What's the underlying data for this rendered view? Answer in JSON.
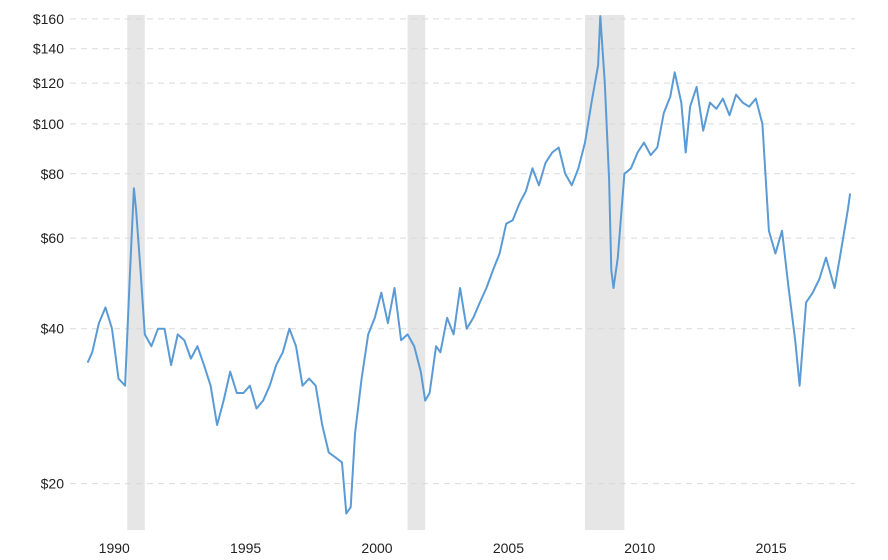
{
  "chart_data": {
    "type": "line",
    "y_scale": "log",
    "ylim": [
      17,
      165
    ],
    "xlim": [
      "1989-01-01",
      "2018-01-01"
    ],
    "grid": "horizontal-dashed",
    "y_ticks": [
      {
        "value": 160,
        "label": "$160"
      },
      {
        "value": 140,
        "label": "$140"
      },
      {
        "value": 120,
        "label": "$120"
      },
      {
        "value": 100,
        "label": "$100"
      },
      {
        "value": 80,
        "label": "$80"
      },
      {
        "value": 60,
        "label": "$60"
      },
      {
        "value": 40,
        "label": "$40"
      },
      {
        "value": 20,
        "label": "$20"
      }
    ],
    "x_ticks": [
      {
        "value": "1990-01-01",
        "label": "1990"
      },
      {
        "value": "1995-01-01",
        "label": "1995"
      },
      {
        "value": "2000-01-01",
        "label": "2000"
      },
      {
        "value": "2005-01-01",
        "label": "2005"
      },
      {
        "value": "2010-01-01",
        "label": "2010"
      },
      {
        "value": "2015-01-01",
        "label": "2015"
      }
    ],
    "recessions": [
      {
        "start": "1990-07-01",
        "end": "1991-03-01"
      },
      {
        "start": "2001-03-01",
        "end": "2001-11-01"
      },
      {
        "start": "2007-12-01",
        "end": "2009-06-01"
      }
    ],
    "series": [
      {
        "color": "#5b9bd5",
        "points": [
          [
            "1989-01-01",
            34.5
          ],
          [
            "1989-03-01",
            36
          ],
          [
            "1989-06-01",
            41
          ],
          [
            "1989-09-01",
            44
          ],
          [
            "1989-12-01",
            40
          ],
          [
            "1990-03-01",
            32
          ],
          [
            "1990-06-01",
            31
          ],
          [
            "1990-08-01",
            49
          ],
          [
            "1990-10-01",
            75
          ],
          [
            "1990-11-01",
            68
          ],
          [
            "1991-01-01",
            52
          ],
          [
            "1991-03-01",
            39
          ],
          [
            "1991-06-01",
            37
          ],
          [
            "1991-09-01",
            40
          ],
          [
            "1991-12-01",
            40
          ],
          [
            "1992-03-01",
            34
          ],
          [
            "1992-06-01",
            39
          ],
          [
            "1992-09-01",
            38
          ],
          [
            "1992-12-01",
            35
          ],
          [
            "1993-03-01",
            37
          ],
          [
            "1993-06-01",
            34
          ],
          [
            "1993-09-01",
            31
          ],
          [
            "1993-12-01",
            26
          ],
          [
            "1994-03-01",
            29
          ],
          [
            "1994-06-01",
            33
          ],
          [
            "1994-09-01",
            30
          ],
          [
            "1994-12-01",
            30
          ],
          [
            "1995-03-01",
            31
          ],
          [
            "1995-06-01",
            28
          ],
          [
            "1995-09-01",
            29
          ],
          [
            "1995-12-01",
            31
          ],
          [
            "1996-03-01",
            34
          ],
          [
            "1996-06-01",
            36
          ],
          [
            "1996-09-01",
            40
          ],
          [
            "1996-12-01",
            37
          ],
          [
            "1997-03-01",
            31
          ],
          [
            "1997-06-01",
            32
          ],
          [
            "1997-09-01",
            31
          ],
          [
            "1997-12-01",
            26
          ],
          [
            "1998-03-01",
            23
          ],
          [
            "1998-06-01",
            22.5
          ],
          [
            "1998-09-01",
            22
          ],
          [
            "1998-11-01",
            17.5
          ],
          [
            "1999-01-01",
            18
          ],
          [
            "1999-03-01",
            25
          ],
          [
            "1999-06-01",
            32
          ],
          [
            "1999-09-01",
            39
          ],
          [
            "1999-12-01",
            42
          ],
          [
            "2000-03-01",
            47
          ],
          [
            "2000-06-01",
            41
          ],
          [
            "2000-09-01",
            48
          ],
          [
            "2000-12-01",
            38
          ],
          [
            "2001-03-01",
            39
          ],
          [
            "2001-06-01",
            37
          ],
          [
            "2001-09-01",
            33
          ],
          [
            "2001-11-01",
            29
          ],
          [
            "2002-01-01",
            30
          ],
          [
            "2002-04-01",
            37
          ],
          [
            "2002-06-01",
            36
          ],
          [
            "2002-09-01",
            42
          ],
          [
            "2002-12-01",
            39
          ],
          [
            "2003-03-01",
            48
          ],
          [
            "2003-06-01",
            40
          ],
          [
            "2003-09-01",
            42
          ],
          [
            "2003-12-01",
            45
          ],
          [
            "2004-03-01",
            48
          ],
          [
            "2004-06-01",
            52
          ],
          [
            "2004-09-01",
            56
          ],
          [
            "2004-12-01",
            64
          ],
          [
            "2005-03-01",
            65
          ],
          [
            "2005-06-01",
            70
          ],
          [
            "2005-09-01",
            74
          ],
          [
            "2005-12-01",
            82
          ],
          [
            "2006-03-01",
            76
          ],
          [
            "2006-06-01",
            84
          ],
          [
            "2006-09-01",
            88
          ],
          [
            "2006-12-01",
            90
          ],
          [
            "2007-03-01",
            80
          ],
          [
            "2007-06-01",
            76
          ],
          [
            "2007-09-01",
            82
          ],
          [
            "2007-12-01",
            92
          ],
          [
            "2008-03-01",
            110
          ],
          [
            "2008-06-01",
            130
          ],
          [
            "2008-07-01",
            162
          ],
          [
            "2008-09-01",
            120
          ],
          [
            "2008-11-01",
            78
          ],
          [
            "2008-12-01",
            52
          ],
          [
            "2009-01-01",
            48
          ],
          [
            "2009-03-01",
            55
          ],
          [
            "2009-06-01",
            80
          ],
          [
            "2009-09-01",
            82
          ],
          [
            "2009-12-01",
            88
          ],
          [
            "2010-03-01",
            92
          ],
          [
            "2010-06-01",
            87
          ],
          [
            "2010-09-01",
            90
          ],
          [
            "2010-12-01",
            105
          ],
          [
            "2011-03-01",
            113
          ],
          [
            "2011-05-01",
            126
          ],
          [
            "2011-08-01",
            110
          ],
          [
            "2011-10-01",
            88
          ],
          [
            "2011-12-01",
            108
          ],
          [
            "2012-03-01",
            118
          ],
          [
            "2012-06-01",
            97
          ],
          [
            "2012-09-01",
            110
          ],
          [
            "2012-12-01",
            107
          ],
          [
            "2013-03-01",
            112
          ],
          [
            "2013-06-01",
            104
          ],
          [
            "2013-09-01",
            114
          ],
          [
            "2013-12-01",
            110
          ],
          [
            "2014-03-01",
            108
          ],
          [
            "2014-06-01",
            112
          ],
          [
            "2014-09-01",
            100
          ],
          [
            "2014-12-01",
            62
          ],
          [
            "2015-03-01",
            56
          ],
          [
            "2015-06-01",
            62
          ],
          [
            "2015-09-01",
            48
          ],
          [
            "2015-12-01",
            38
          ],
          [
            "2016-02-01",
            31
          ],
          [
            "2016-05-01",
            45
          ],
          [
            "2016-08-01",
            47
          ],
          [
            "2016-11-01",
            50
          ],
          [
            "2017-02-01",
            55
          ],
          [
            "2017-06-01",
            48
          ],
          [
            "2017-09-01",
            57
          ],
          [
            "2017-12-01",
            68
          ],
          [
            "2018-01-01",
            73
          ]
        ]
      }
    ]
  }
}
